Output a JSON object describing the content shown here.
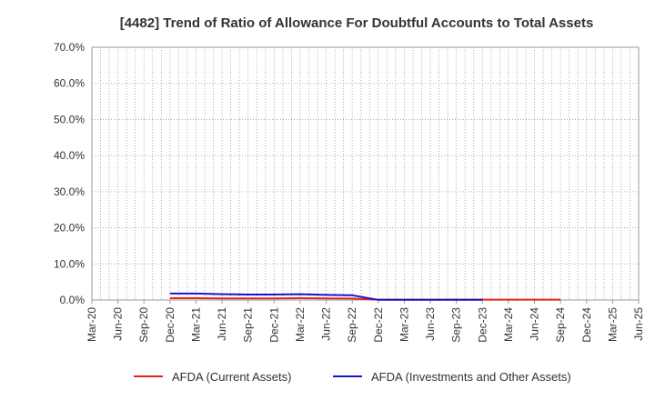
{
  "chart_data": {
    "type": "line",
    "title": "[4482]  Trend of Ratio of Allowance For Doubtful Accounts to Total Assets",
    "xlabel": "",
    "ylabel": "",
    "ylim": [
      0,
      70
    ],
    "y_ticks": [
      "0.0%",
      "10.0%",
      "20.0%",
      "30.0%",
      "40.0%",
      "50.0%",
      "60.0%",
      "70.0%"
    ],
    "x_ticks": [
      "Mar-20",
      "Jun-20",
      "Sep-20",
      "Dec-20",
      "Mar-21",
      "Jun-21",
      "Sep-21",
      "Dec-21",
      "Mar-22",
      "Jun-22",
      "Sep-22",
      "Dec-22",
      "Mar-23",
      "Jun-23",
      "Sep-23",
      "Dec-23",
      "Mar-24",
      "Jun-24",
      "Sep-24",
      "Dec-24",
      "Mar-25",
      "Jun-25"
    ],
    "grid": true,
    "legend_position": "bottom",
    "series": [
      {
        "name": "AFDA (Current Assets)",
        "color": "#e8231b",
        "x": [
          "Dec-20",
          "Mar-21",
          "Jun-21",
          "Sep-21",
          "Dec-21",
          "Mar-22",
          "Jun-22",
          "Sep-22",
          "Dec-22",
          "Mar-23",
          "Jun-23",
          "Sep-23",
          "Dec-23",
          "Mar-24",
          "Jun-24",
          "Sep-24"
        ],
        "values": [
          0.5,
          0.5,
          0.45,
          0.45,
          0.45,
          0.5,
          0.45,
          0.4,
          0.1,
          0.1,
          0.1,
          0.1,
          0.1,
          0.1,
          0.1,
          0.1
        ]
      },
      {
        "name": "AFDA (Investments and Other Assets)",
        "color": "#1a14c8",
        "x": [
          "Dec-20",
          "Mar-21",
          "Jun-21",
          "Sep-21",
          "Dec-21",
          "Mar-22",
          "Jun-22",
          "Sep-22",
          "Dec-22",
          "Mar-23",
          "Jun-23",
          "Sep-23",
          "Dec-23"
        ],
        "values": [
          1.8,
          1.8,
          1.6,
          1.5,
          1.5,
          1.6,
          1.4,
          1.3,
          0.05,
          0.05,
          0.05,
          0.05,
          0.05
        ]
      }
    ]
  }
}
